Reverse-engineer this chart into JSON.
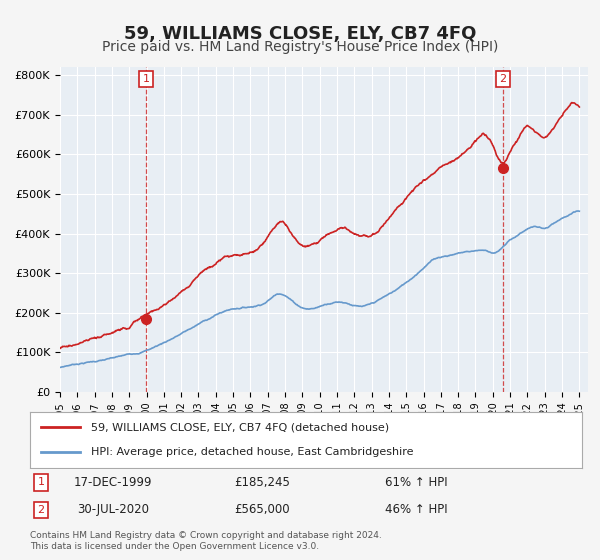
{
  "title": "59, WILLIAMS CLOSE, ELY, CB7 4FQ",
  "subtitle": "Price paid vs. HM Land Registry's House Price Index (HPI)",
  "title_fontsize": 13,
  "subtitle_fontsize": 10,
  "bg_color": "#f0f4f8",
  "plot_bg_color": "#e8eef4",
  "red_color": "#cc2222",
  "blue_color": "#6699cc",
  "ylim": [
    0,
    820000
  ],
  "xlim_start": 1995.0,
  "xlim_end": 2025.5,
  "transaction1_x": 1999.96,
  "transaction1_y": 185245,
  "transaction1_label": "17-DEC-1999",
  "transaction1_price": "£185,245",
  "transaction1_hpi": "61% ↑ HPI",
  "transaction2_x": 2020.58,
  "transaction2_y": 565000,
  "transaction2_label": "30-JUL-2020",
  "transaction2_price": "£565,000",
  "transaction2_hpi": "46% ↑ HPI",
  "legend_line1": "59, WILLIAMS CLOSE, ELY, CB7 4FQ (detached house)",
  "legend_line2": "HPI: Average price, detached house, East Cambridgeshire",
  "footer1": "Contains HM Land Registry data © Crown copyright and database right 2024.",
  "footer2": "This data is licensed under the Open Government Licence v3.0.",
  "yticks": [
    0,
    100000,
    200000,
    300000,
    400000,
    500000,
    600000,
    700000,
    800000
  ],
  "ytick_labels": [
    "£0",
    "£100K",
    "£200K",
    "£300K",
    "£400K",
    "£500K",
    "£600K",
    "£700K",
    "£800K"
  ]
}
